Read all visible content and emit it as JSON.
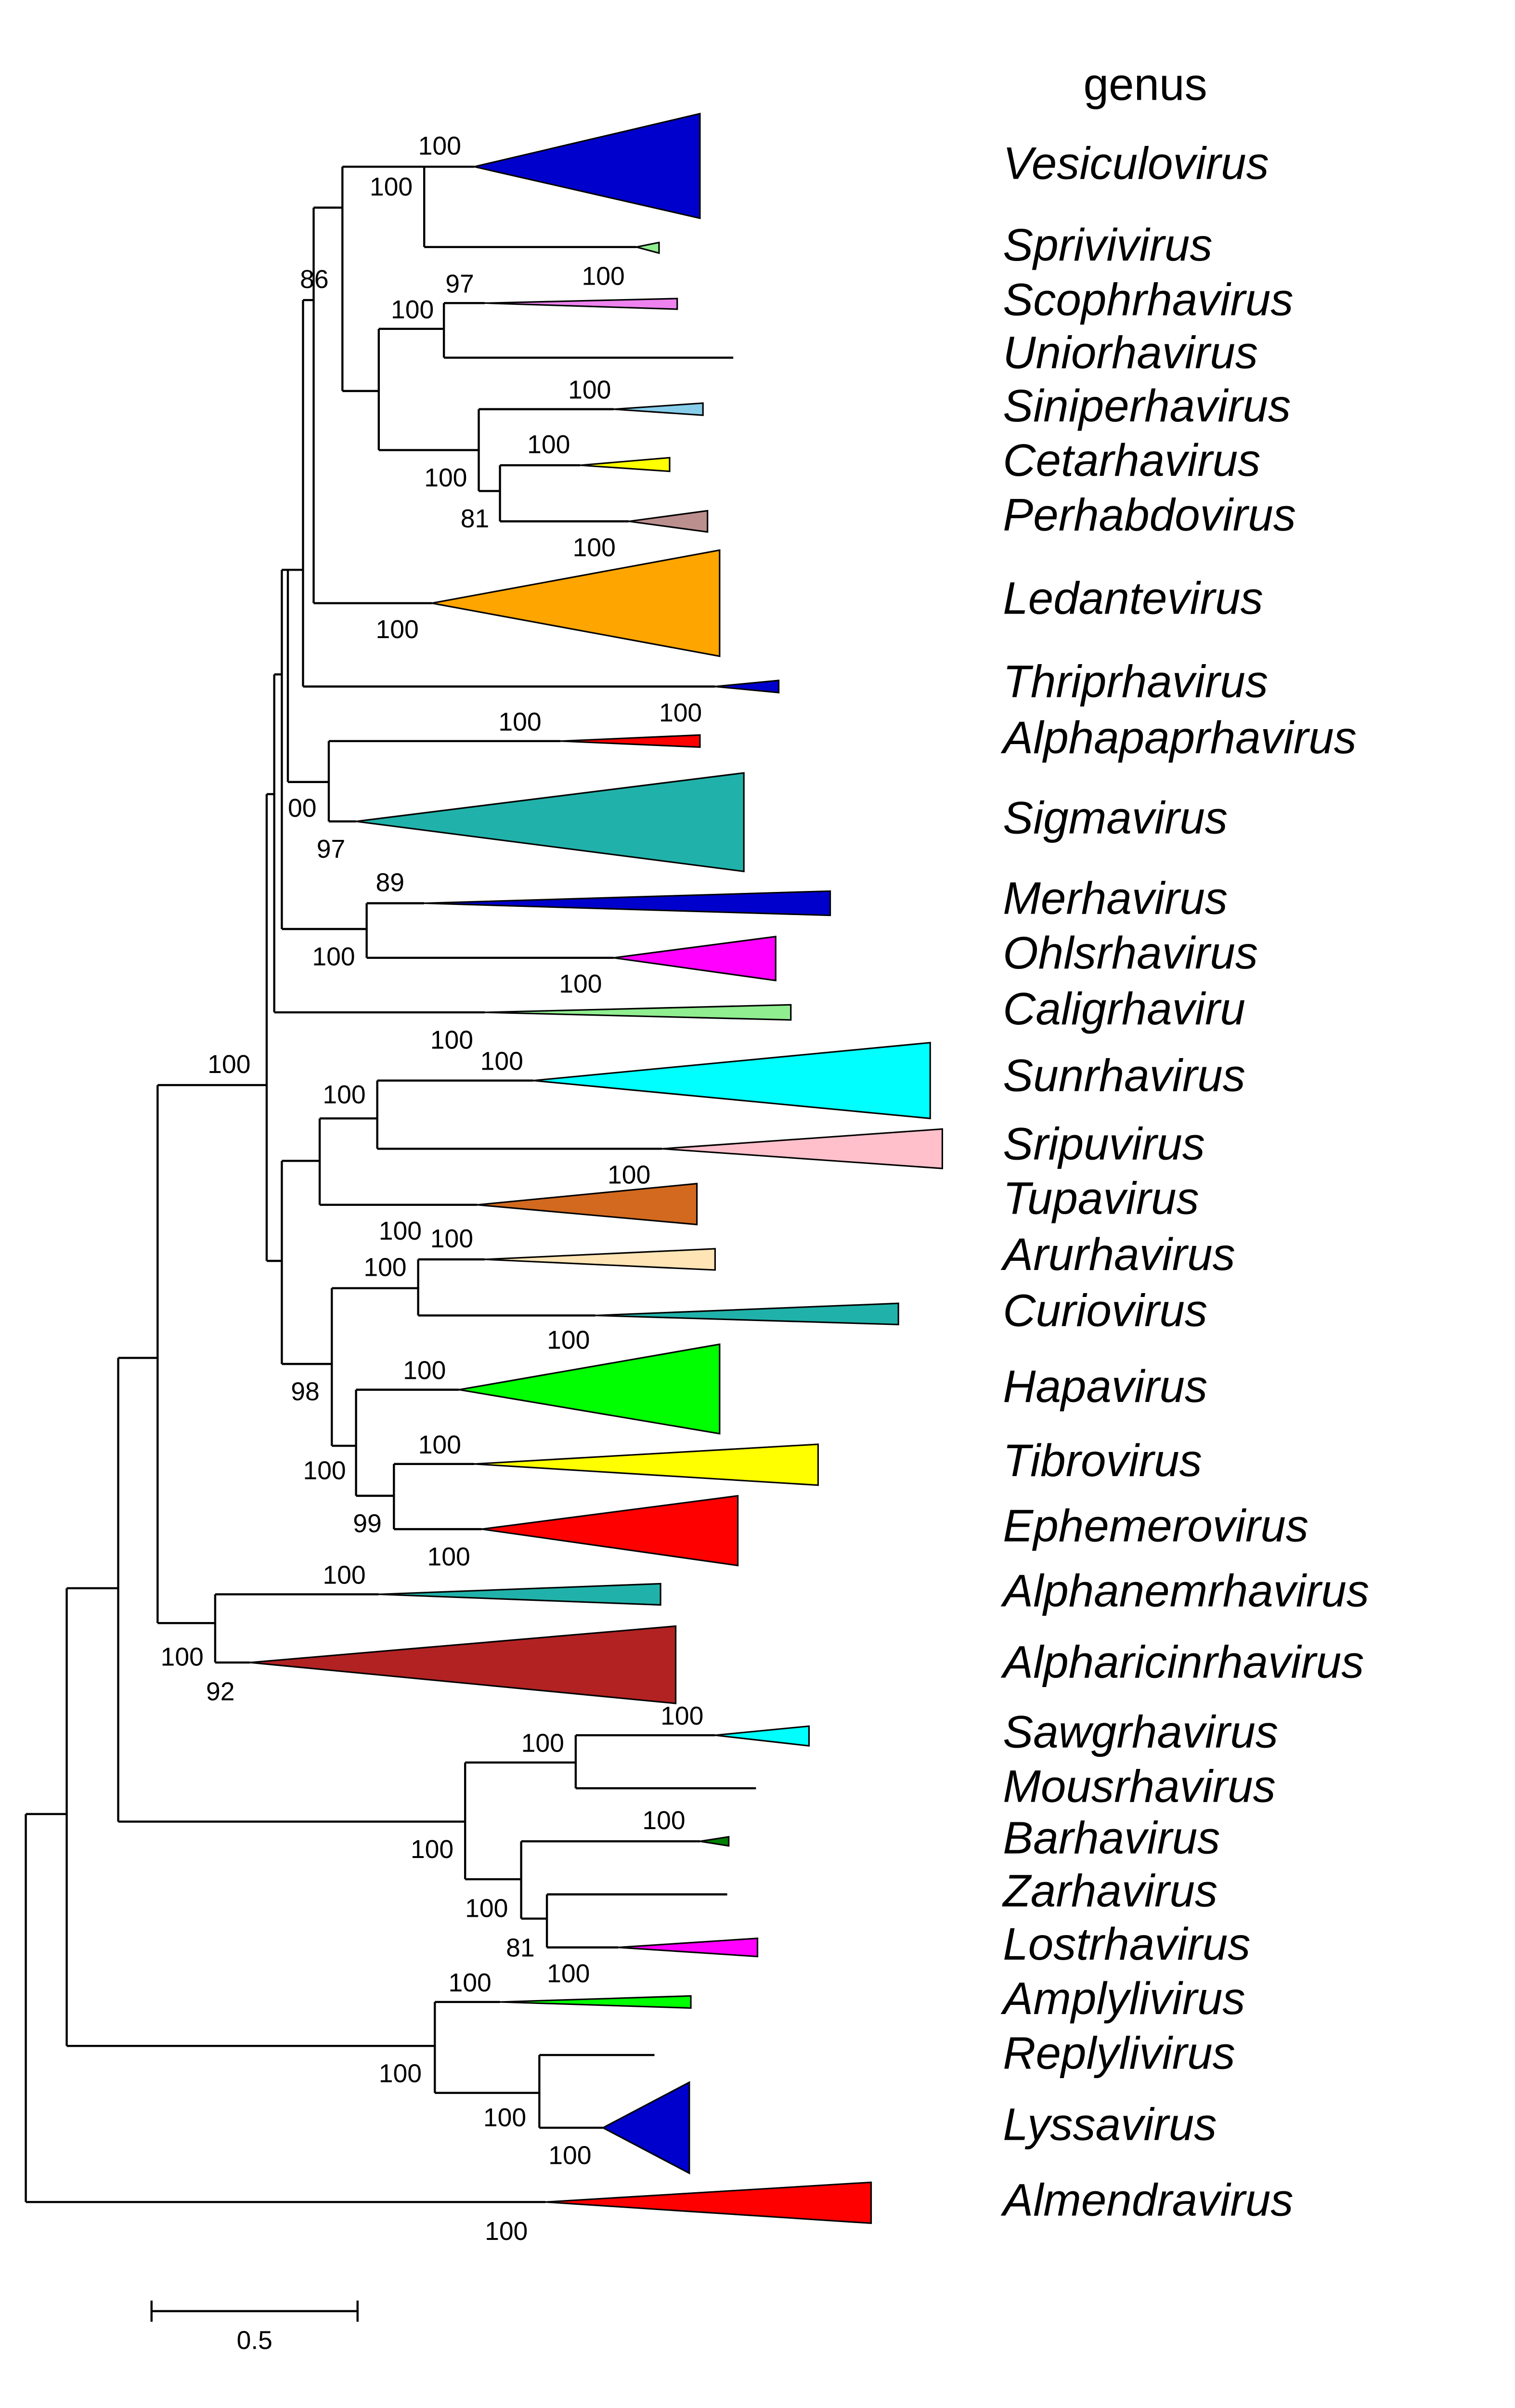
{
  "header": {
    "title": "genus"
  },
  "scale_bar": {
    "label": "0.5",
    "value": 0.5
  },
  "leaves": [
    {
      "name": "Vesiculovirus",
      "color": "#0000cd"
    },
    {
      "name": "Sprivivirus",
      "color": "#90ee90"
    },
    {
      "name": "Scophrhavirus",
      "color": "#ee82ee"
    },
    {
      "name": "Uniorhavirus",
      "color": null
    },
    {
      "name": "Siniperhavirus",
      "color": "#87ceeb"
    },
    {
      "name": "Cetarhavirus",
      "color": "#ffff00"
    },
    {
      "name": "Perhabdovirus",
      "color": "#bc8f8f"
    },
    {
      "name": "Ledantevirus",
      "color": "#ffa500"
    },
    {
      "name": "Thriprhavirus",
      "color": "#0000cd"
    },
    {
      "name": "Alphapaprhavirus",
      "color": "#ff0000"
    },
    {
      "name": "Sigmavirus",
      "color": "#20b2aa"
    },
    {
      "name": "Merhavirus",
      "color": "#0000cd"
    },
    {
      "name": "Ohlsrhavirus",
      "color": "#ff00ff"
    },
    {
      "name": "Caligrhaviru",
      "color": "#90ee90"
    },
    {
      "name": "Sunrhavirus",
      "color": "#00ffff"
    },
    {
      "name": "Sripuvirus",
      "color": "#ffc0cb"
    },
    {
      "name": "Tupavirus",
      "color": "#d2691e"
    },
    {
      "name": "Arurhavirus",
      "color": "#ffe4b5"
    },
    {
      "name": "Curiovirus",
      "color": "#20b2aa"
    },
    {
      "name": "Hapavirus",
      "color": "#00ff00"
    },
    {
      "name": "Tibrovirus",
      "color": "#ffff00"
    },
    {
      "name": "Ephemerovirus",
      "color": "#ff0000"
    },
    {
      "name": "Alphanemrhavirus",
      "color": "#20b2aa"
    },
    {
      "name": "Alpharicinrhavirus",
      "color": "#b22222"
    },
    {
      "name": "Sawgrhavirus",
      "color": "#00ffff"
    },
    {
      "name": "Mousrhavirus",
      "color": null
    },
    {
      "name": "Barhavirus",
      "color": "#008000"
    },
    {
      "name": "Zarhavirus",
      "color": null
    },
    {
      "name": "Lostrhavirus",
      "color": "#ff00ff"
    },
    {
      "name": "Amplylivirus",
      "color": "#00ff00"
    },
    {
      "name": "Replylivirus",
      "color": null
    },
    {
      "name": "Lyssavirus",
      "color": "#0000cd"
    },
    {
      "name": "Almendravirus",
      "color": "#ff0000"
    }
  ],
  "support_values": [
    "100",
    "100",
    "86",
    "97",
    "100",
    "100",
    "100",
    "100",
    "100",
    "81",
    "100",
    "100",
    "100",
    "100",
    "00",
    "97",
    "89",
    "100",
    "100",
    "100",
    "100",
    "100",
    "100",
    "100",
    "100",
    "100",
    "100",
    "100",
    "98",
    "100",
    "100",
    "100",
    "99",
    "100",
    "100",
    "100",
    "92",
    "100",
    "100",
    "100",
    "100",
    "100",
    "81",
    "100",
    "100",
    "100",
    "100",
    "100",
    "100"
  ]
}
